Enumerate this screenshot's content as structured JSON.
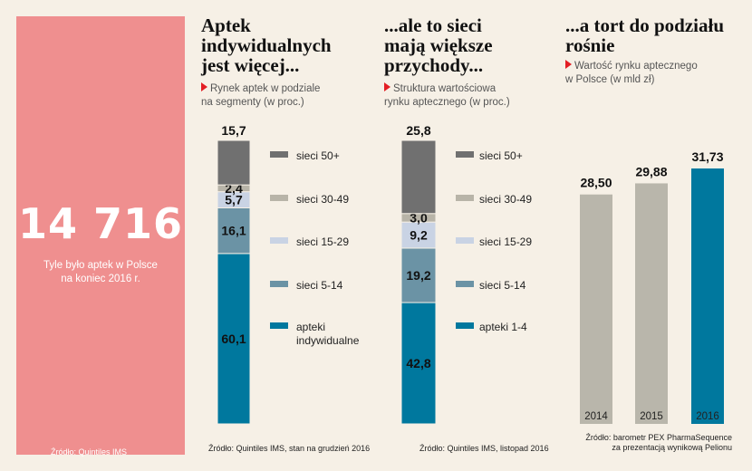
{
  "highlight": {
    "number": "14 716",
    "caption_line1": "Tyle było aptek w Polsce",
    "caption_line2": "na koniec 2016 r.",
    "source": "Źródło: Quintiles IMS"
  },
  "colors": {
    "pink_panel": "#ef8f8f",
    "sieci_50": "#707070",
    "sieci_30_49": "#b8b4a8",
    "sieci_15_29": "#c9d3e4",
    "sieci_5_14": "#6b93a5",
    "apteki": "#00789e",
    "tort_bar_old": "#b9b6ab",
    "tort_bar_new": "#00789e",
    "accent_triangle": "#e31e24"
  },
  "sections": {
    "first": {
      "title_lines": [
        "Aptek",
        "indywidualnych",
        "jest więcej..."
      ],
      "subtitle_lines": [
        "Rynek aptek w podziale",
        "na segmenty (w proc.)"
      ],
      "source": "Źródło: Quintiles IMS, stan na grudzień 2016"
    },
    "second": {
      "title_lines": [
        "...ale to sieci",
        "mają większe",
        "przychody..."
      ],
      "subtitle_lines": [
        "Struktura wartościowa",
        "rynku aptecznego (w proc.)"
      ],
      "source": "Źródło: Quintiles IMS, listopad 2016"
    },
    "third": {
      "title_lines": [
        "...a tort do podziału",
        "rośnie"
      ],
      "subtitle_lines": [
        "Wartość rynku aptecznego",
        "w Polsce (w mld zł)"
      ],
      "source_lines": [
        "Źródło: barometr PEX PharmaSequence",
        "za prezentacją wynikową Pelionu"
      ]
    }
  },
  "chart_data": [
    {
      "type": "bar",
      "stacked": true,
      "unit": "proc.",
      "ylim": [
        0,
        100
      ],
      "segments": [
        {
          "name": "apteki indywidualne",
          "legend_lines": [
            "apteki",
            "indywidualne"
          ],
          "value": 60.1,
          "label": "60,1",
          "color": "#00789e"
        },
        {
          "name": "sieci 5-14",
          "legend_lines": [
            "sieci 5-14"
          ],
          "value": 16.1,
          "label": "16,1",
          "color": "#6b93a5"
        },
        {
          "name": "sieci 15-29",
          "legend_lines": [
            "sieci 15-29"
          ],
          "value": 5.7,
          "label": "5,7",
          "color": "#c9d3e4"
        },
        {
          "name": "sieci 30-49",
          "legend_lines": [
            "sieci 30-49"
          ],
          "value": 2.4,
          "label": "2,4",
          "color": "#b8b4a8"
        },
        {
          "name": "sieci 50+",
          "legend_lines": [
            "sieci 50+"
          ],
          "value": 15.7,
          "label": "15,7",
          "color": "#707070"
        }
      ]
    },
    {
      "type": "bar",
      "stacked": true,
      "unit": "proc.",
      "ylim": [
        0,
        100
      ],
      "segments": [
        {
          "name": "apteki 1-4",
          "legend_lines": [
            "apteki 1-4"
          ],
          "value": 42.8,
          "label": "42,8",
          "color": "#00789e"
        },
        {
          "name": "sieci 5-14",
          "legend_lines": [
            "sieci 5-14"
          ],
          "value": 19.2,
          "label": "19,2",
          "color": "#6b93a5"
        },
        {
          "name": "sieci 15-29",
          "legend_lines": [
            "sieci 15-29"
          ],
          "value": 9.2,
          "label": "9,2",
          "color": "#c9d3e4"
        },
        {
          "name": "sieci 30-49",
          "legend_lines": [
            "sieci 30-49"
          ],
          "value": 3.0,
          "label": "3,0",
          "color": "#b8b4a8"
        },
        {
          "name": "sieci 50+",
          "legend_lines": [
            "sieci 50+"
          ],
          "value": 25.8,
          "label": "25,8",
          "color": "#707070"
        }
      ]
    },
    {
      "type": "bar",
      "unit": "mld zł",
      "categories": [
        "2014",
        "2015",
        "2016"
      ],
      "values": [
        28.5,
        29.88,
        31.73
      ],
      "labels": [
        "28,50",
        "29,88",
        "31,73"
      ],
      "colors": [
        "#b9b6ab",
        "#b9b6ab",
        "#00789e"
      ]
    }
  ]
}
